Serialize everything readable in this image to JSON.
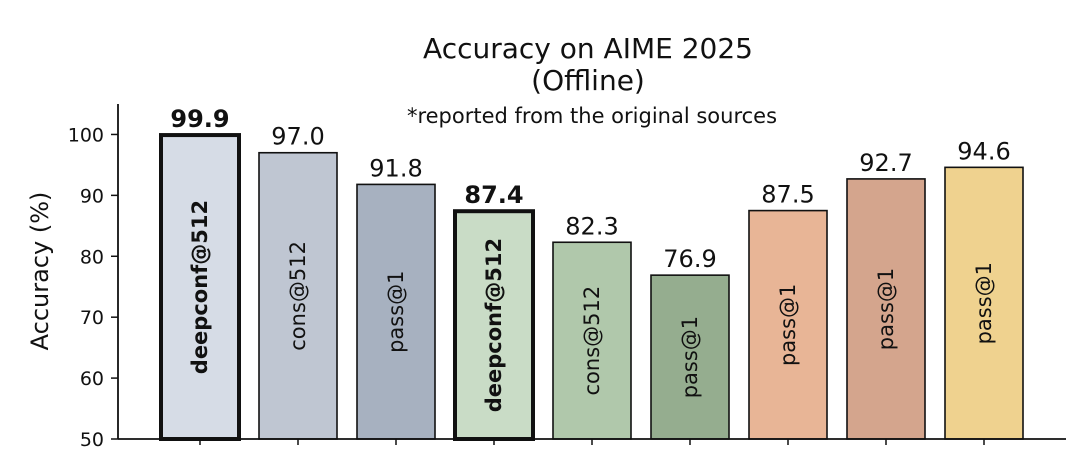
{
  "chart_data": {
    "type": "bar",
    "title": "Accuracy on AIME 2025",
    "title_line2": "(Offline)",
    "subtitle": "*reported from the original sources",
    "ylabel": "Accuracy (%)",
    "xlabel": "",
    "ylim": [
      50,
      105
    ],
    "yticks": [
      50,
      60,
      70,
      80,
      90,
      100
    ],
    "grid": false,
    "values": [
      99.9,
      97.0,
      91.8,
      87.4,
      82.3,
      76.9,
      87.5,
      92.7,
      94.6
    ],
    "value_labels": [
      "99.9",
      "97.0",
      "91.8",
      "87.4",
      "82.3",
      "76.9",
      "87.5",
      "92.7",
      "94.6"
    ],
    "bar_labels": [
      "deepconf@512",
      "cons@512",
      "pass@1",
      "deepconf@512",
      "cons@512",
      "pass@1",
      "pass@1",
      "pass@1",
      "pass@1"
    ],
    "highlighted": [
      true,
      false,
      false,
      true,
      false,
      false,
      false,
      false,
      false
    ],
    "colors": [
      "#d6dce6",
      "#bfc6d2",
      "#a7b1c0",
      "#c9dcc6",
      "#b0c8ab",
      "#95ad8f",
      "#e8b596",
      "#d4a58d",
      "#efd28f"
    ]
  }
}
